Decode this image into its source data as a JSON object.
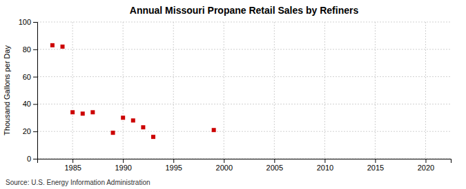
{
  "chart_data": {
    "type": "scatter",
    "title": "Annual Missouri Propane Retail Sales by Refiners",
    "ylabel": "Thousand Gallons per Day",
    "annotations": [
      "Source: U.S. Energy Information Administration"
    ],
    "x": [
      1983,
      1984,
      1985,
      1986,
      1987,
      1989,
      1990,
      1991,
      1992,
      1993,
      1999
    ],
    "values": [
      83,
      82,
      34,
      33,
      34,
      19,
      30,
      28,
      23,
      16,
      21
    ],
    "color": "#cc0000",
    "marker": "square",
    "xlim": [
      1981.5,
      2022.5
    ],
    "ylim": [
      0,
      100
    ],
    "xticks": [
      1985,
      1990,
      1995,
      2000,
      2005,
      2010,
      2015,
      2020
    ],
    "yticks": [
      0,
      20,
      40,
      60,
      80,
      100
    ],
    "grid": true
  }
}
